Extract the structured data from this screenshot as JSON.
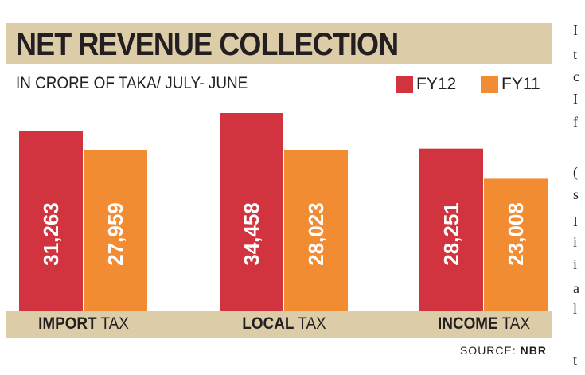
{
  "chart_data": {
    "type": "bar",
    "title": "NET REVENUE COLLECTION",
    "subtitle": "IN CRORE OF TAKA/ JULY- JUNE",
    "categories": [
      {
        "bold": "IMPORT",
        "rest": " TAX"
      },
      {
        "bold": "LOCAL",
        "rest": " TAX"
      },
      {
        "bold": "INCOME",
        "rest": " TAX"
      }
    ],
    "series": [
      {
        "name": "FY12",
        "color": "#d1343f",
        "values": [
          31263,
          34458,
          28251
        ],
        "labels": [
          "31,263",
          "34,458",
          "28,251"
        ]
      },
      {
        "name": "FY11",
        "color": "#f28c32",
        "values": [
          27959,
          28023,
          23008
        ],
        "labels": [
          "27,959",
          "28,023",
          "23,008"
        ]
      }
    ],
    "legend_position": "top-right",
    "grid": false
  },
  "source": {
    "label": "SOURCE:",
    "value": "NBR"
  },
  "side_column": [
    "I",
    "t",
    "c",
    "I",
    "f",
    "(",
    "s",
    "I",
    "i",
    "i",
    "a",
    "l",
    "t"
  ]
}
